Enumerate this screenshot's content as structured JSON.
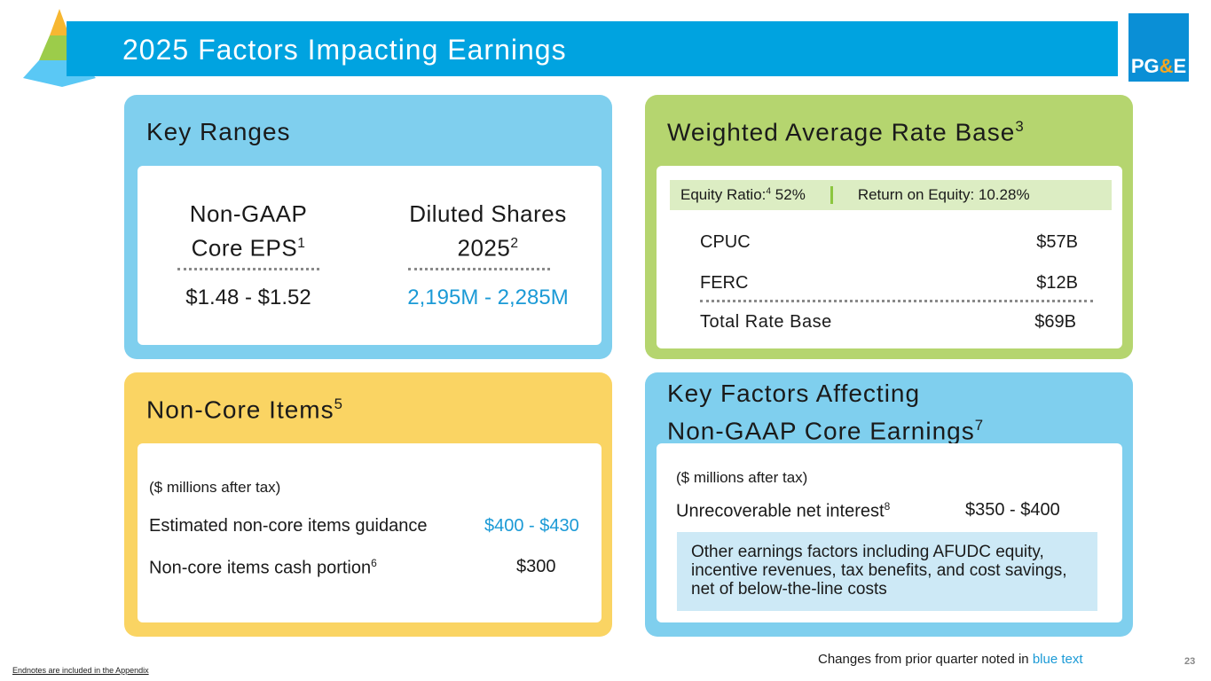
{
  "header": {
    "title": "2025 Factors Impacting Earnings",
    "logo": "PG&E"
  },
  "key_ranges": {
    "title": "Key Ranges",
    "eps_label_1": "Non-GAAP",
    "eps_label_2": "Core EPS",
    "eps_sup": "1",
    "eps_value": "$1.48 - $1.52",
    "shares_label_1": "Diluted Shares",
    "shares_label_2": "2025",
    "shares_sup": "2",
    "shares_value": "2,195M - 2,285M"
  },
  "rate_base": {
    "title": "Weighted Average Rate Base",
    "title_sup": "3",
    "equity_ratio_label": "Equity Ratio:",
    "equity_ratio_sup": "4",
    "equity_ratio": "52%",
    "roe": "Return on Equity: 10.28%",
    "rows": [
      {
        "label": "CPUC",
        "value": "$57B"
      },
      {
        "label": "FERC",
        "value": "$12B"
      },
      {
        "label": "Total Rate Base",
        "value": "$69B"
      }
    ]
  },
  "non_core": {
    "title": "Non-Core Items",
    "title_sup": "5",
    "units": "($ millions after tax)",
    "guidance_label": "Estimated non-core items guidance",
    "guidance_value": "$400 - $430",
    "cash_label": "Non-core items cash portion",
    "cash_sup": "6",
    "cash_value": "$300"
  },
  "key_factors": {
    "title_1": "Key Factors Affecting",
    "title_2": "Non-GAAP Core Earnings",
    "title_sup": "7",
    "units": "($ millions after tax)",
    "interest_label": "Unrecoverable net interest",
    "interest_sup": "8",
    "interest_value": "$350 - $400",
    "other": "Other earnings factors including AFUDC equity, incentive revenues, tax benefits, and cost savings, net of below-the-line costs"
  },
  "footer": {
    "endnotes": "Endnotes are included in the Appendix",
    "changes_prefix": "Changes from prior quarter noted in",
    "changes_blue": "blue text",
    "page": "23"
  }
}
